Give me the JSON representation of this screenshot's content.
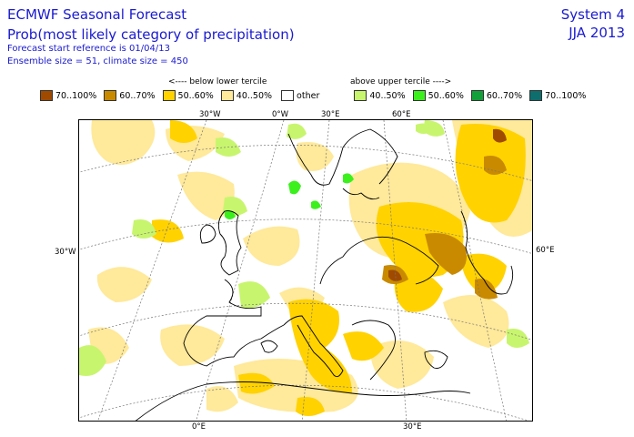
{
  "header": {
    "title": "ECMWF Seasonal Forecast",
    "subtitle": "Prob(most likely category of precipitation)",
    "forecast_start": "Forecast start reference is 01/04/13",
    "ensemble": "Ensemble size = 51, climate size = 450",
    "system": "System 4",
    "period": "JJA 2013"
  },
  "legend": {
    "below_label": "<---- below lower tercile",
    "above_label": "above upper tercile ---->",
    "items": [
      {
        "label": "70..100%",
        "color": "#a04a00"
      },
      {
        "label": "60..70%",
        "color": "#c98a00"
      },
      {
        "label": "50..60%",
        "color": "#ffd200"
      },
      {
        "label": "40..50%",
        "color": "#ffe99a"
      },
      {
        "label": "other",
        "color": "#ffffff"
      },
      {
        "label": "40..50%",
        "color": "#c8f56e"
      },
      {
        "label": "50..60%",
        "color": "#3cf01e"
      },
      {
        "label": "60..70%",
        "color": "#12a03a"
      },
      {
        "label": "70..100%",
        "color": "#0e6e6e"
      }
    ]
  },
  "map": {
    "ticks_top": [
      "30°W",
      "0°W",
      "30°E",
      "60°E"
    ],
    "tick_left": "30°W",
    "tick_right": "60°E",
    "ticks_bottom": [
      "0°E",
      "30°E"
    ]
  }
}
